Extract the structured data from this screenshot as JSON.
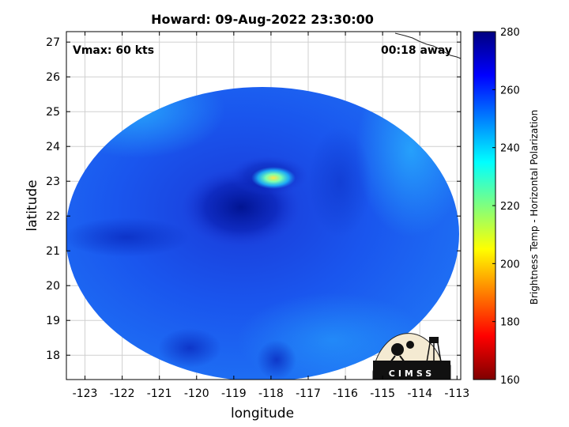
{
  "title": "Howard: 09-Aug-2022 23:30:00",
  "annotations": {
    "vmax": "Vmax: 60 kts",
    "time_away": "00:18 away"
  },
  "axes": {
    "xlabel": "longitude",
    "ylabel": "latitude",
    "x_range": [
      -123.5,
      -112.9
    ],
    "y_range": [
      17.3,
      27.3
    ],
    "x_ticks": [
      -123,
      -122,
      -121,
      -120,
      -119,
      -118,
      -117,
      -116,
      -115,
      -114,
      -113
    ],
    "y_ticks": [
      18,
      19,
      20,
      21,
      22,
      23,
      24,
      25,
      26,
      27
    ],
    "x_tick_labels": [
      "-123",
      "-122",
      "-121",
      "-120",
      "-119",
      "-118",
      "-117",
      "-116",
      "-115",
      "-114",
      "-113"
    ],
    "y_tick_labels": [
      "18",
      "19",
      "20",
      "21",
      "22",
      "23",
      "24",
      "25",
      "26",
      "27"
    ],
    "grid": true
  },
  "colorbar": {
    "label": "Brightness Temp - Horizontal Polarization",
    "range": [
      160,
      280
    ],
    "ticks": [
      160,
      180,
      200,
      220,
      240,
      260,
      280
    ],
    "tick_labels": [
      "160",
      "180",
      "200",
      "220",
      "240",
      "260",
      "280"
    ],
    "colormap": "jet"
  },
  "storm": {
    "center_lon": -118.0,
    "center_lat": 22.6,
    "coldest_lon": -117.8,
    "coldest_lat": 23.1,
    "coldest_temp": 215,
    "background_temp": 258,
    "eye_temp": 270
  },
  "logo": {
    "text": "CIMSS"
  },
  "colors": {
    "coast": "#222222",
    "grid": "#d0d0d0",
    "frame": "#000000"
  }
}
